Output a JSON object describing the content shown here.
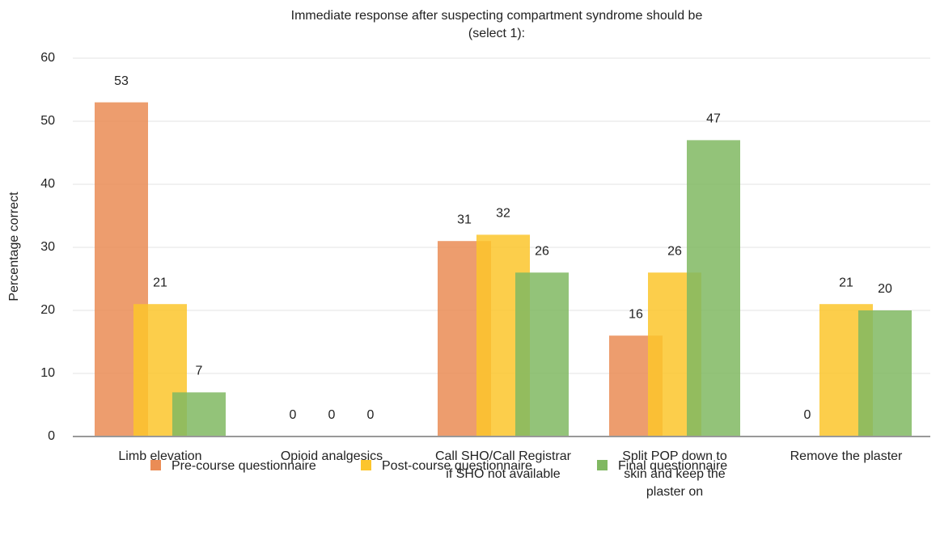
{
  "chart_data": {
    "type": "bar",
    "title": [
      "Immediate response after suspecting compartment syndrome should be",
      "(select 1):"
    ],
    "y_label": "Percentage correct",
    "categories": [
      [
        "Limb elevation"
      ],
      [
        "Opioid analgesics"
      ],
      [
        "Call SHO/Call Registrar",
        "if SHO not available"
      ],
      [
        "Split POP down to",
        "skin and keep the",
        "plaster on"
      ],
      [
        "Remove the plaster"
      ]
    ],
    "series": [
      {
        "name": "Pre-course questionnaire",
        "color": "#ea8c55",
        "values": [
          53,
          0,
          31,
          16,
          0
        ]
      },
      {
        "name": "Post-course questionnaire",
        "color": "#fcc52c",
        "values": [
          21,
          0,
          32,
          26,
          21
        ]
      },
      {
        "name": "Final questionnaire",
        "color": "#80b862",
        "values": [
          7,
          0,
          26,
          47,
          20
        ]
      }
    ],
    "ylim": [
      0,
      60
    ],
    "yticks": [
      0,
      10,
      20,
      30,
      40,
      50,
      60
    ],
    "grid": true
  }
}
